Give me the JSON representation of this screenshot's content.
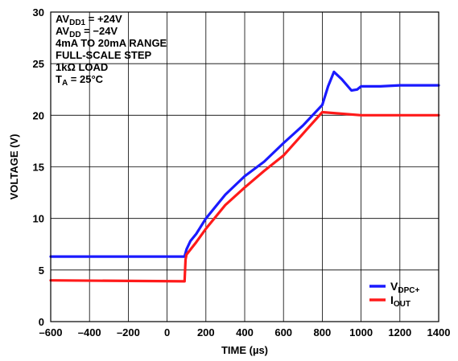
{
  "chart_data": {
    "type": "line",
    "xlabel": "TIME (µs)",
    "ylabel": "VOLTAGE (V)",
    "xlim": [
      -600,
      1400
    ],
    "ylim": [
      0,
      30
    ],
    "x_ticks": [
      "–600",
      "–400",
      "–200",
      "0",
      "200",
      "400",
      "600",
      "800",
      "1000",
      "1200",
      "1400"
    ],
    "y_ticks": [
      "0",
      "5",
      "10",
      "15",
      "20",
      "25",
      "30"
    ],
    "grid": true,
    "legend_position": "bottom-right",
    "annotations": [
      {
        "main": "AV",
        "sub": "DD1",
        "rest": " = +24V"
      },
      {
        "main": "AV",
        "sub": "DD",
        "rest": " = −24V"
      },
      {
        "main": "4mA TO 20mA RANGE",
        "sub": "",
        "rest": ""
      },
      {
        "main": "FULL-SCALE STEP",
        "sub": "",
        "rest": ""
      },
      {
        "main": "1kΩ LOAD",
        "sub": "",
        "rest": ""
      },
      {
        "main": "T",
        "sub": "A",
        "rest": " = 25°C"
      }
    ],
    "series": [
      {
        "name_main": "V",
        "name_sub": "DPC+",
        "color": "#1a1aff",
        "x": [
          -600,
          90,
          100,
          120,
          150,
          200,
          300,
          400,
          500,
          600,
          700,
          800,
          830,
          860,
          900,
          950,
          980,
          1000,
          1100,
          1200,
          1400
        ],
        "values": [
          6.3,
          6.3,
          7.0,
          7.8,
          8.5,
          10.0,
          12.3,
          14.1,
          15.5,
          17.3,
          19.0,
          21.0,
          22.8,
          24.2,
          23.5,
          22.4,
          22.5,
          22.8,
          22.8,
          22.9,
          22.9
        ]
      },
      {
        "name_main": "I",
        "name_sub": "OUT",
        "color": "#ff1a1a",
        "x": [
          -600,
          90,
          95,
          100,
          150,
          200,
          300,
          400,
          500,
          600,
          700,
          800,
          1000,
          1200,
          1400
        ],
        "values": [
          4.0,
          3.9,
          6.0,
          6.5,
          7.7,
          9.0,
          11.3,
          13.0,
          14.6,
          16.1,
          18.2,
          20.3,
          20.0,
          20.0,
          20.0
        ]
      }
    ]
  }
}
